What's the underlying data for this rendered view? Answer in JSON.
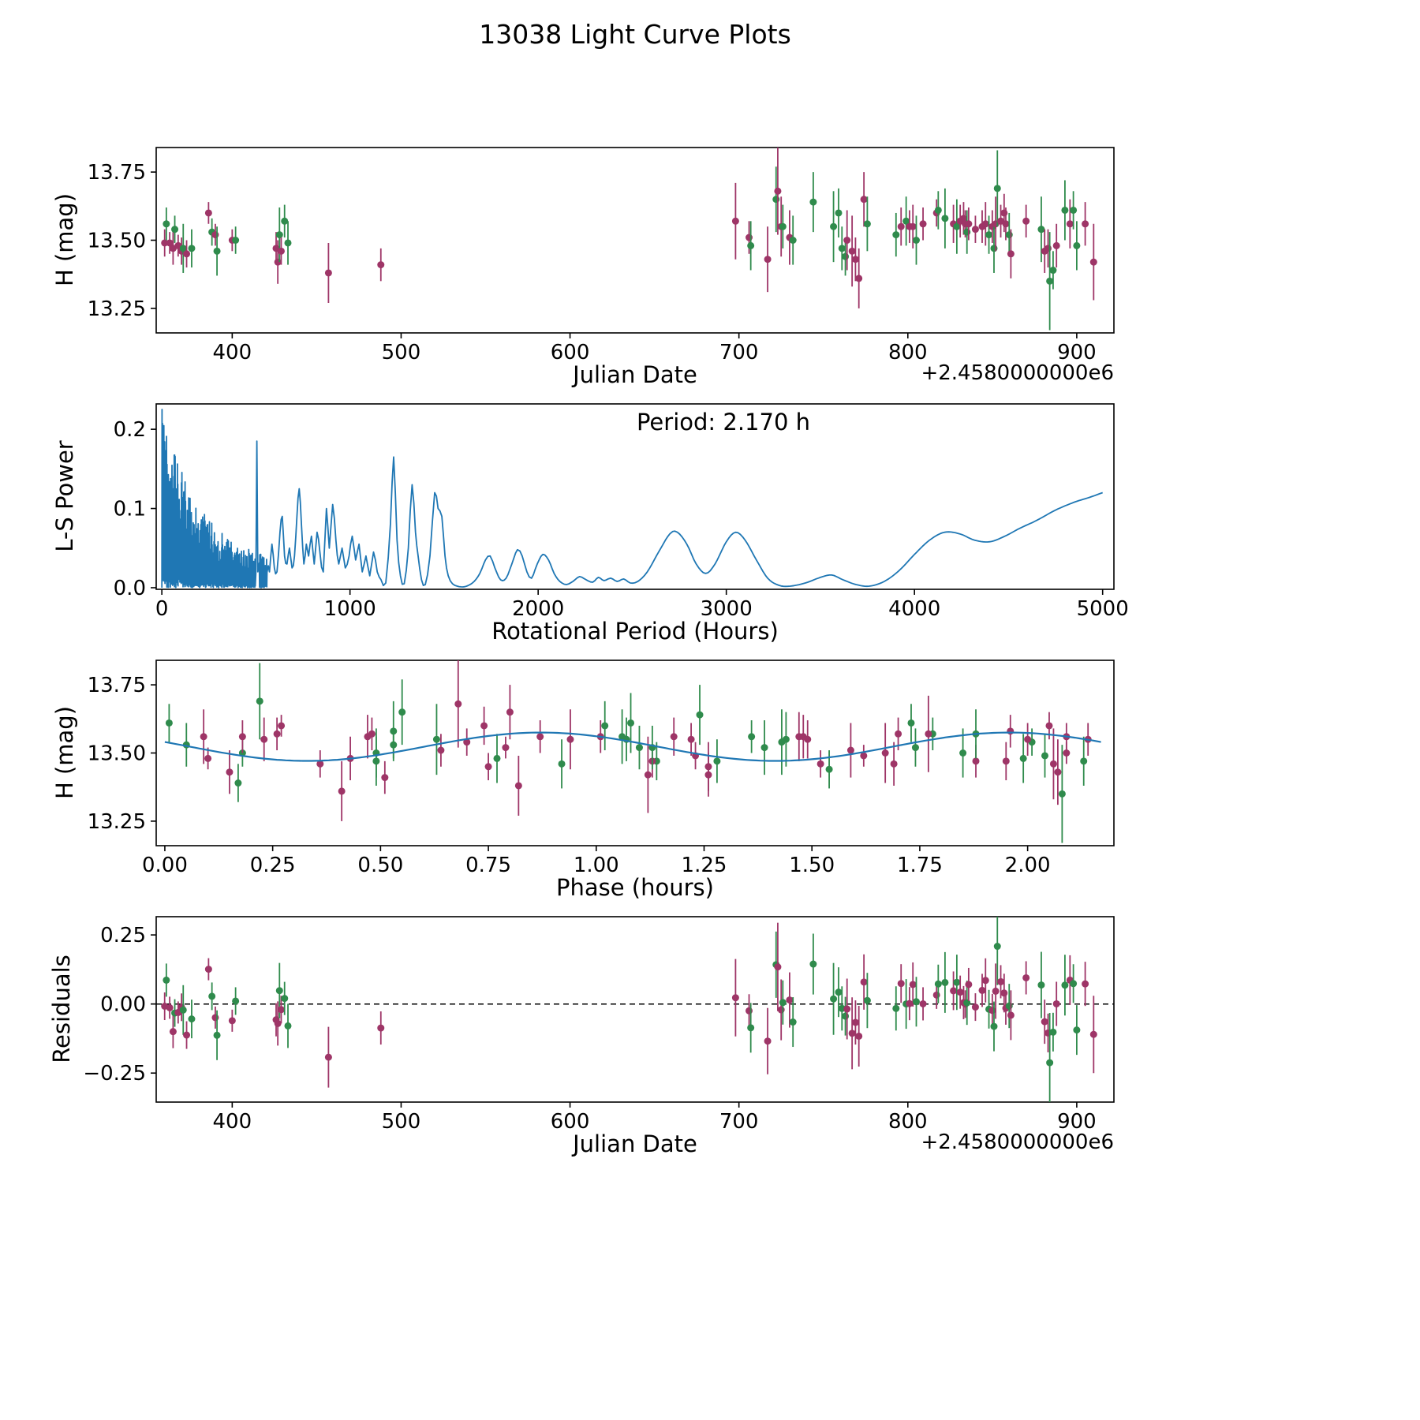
{
  "title": "13038 Light Curve Plots",
  "colors": {
    "green": "#2f8b4c",
    "purple": "#9e3567",
    "line": "#1f77b4",
    "axis": "#000000"
  },
  "chart_data": [
    {
      "type": "scatter",
      "name": "light-curve-vs-julian-date",
      "xlabel": "Julian Date",
      "ylabel": "H (mag)",
      "x_offset": "+2.4580000000e6",
      "xlim": [
        355,
        922
      ],
      "ylim": [
        13.16,
        13.84
      ],
      "xticks": [
        400,
        500,
        600,
        700,
        800,
        900
      ],
      "xticklabels": [
        "400",
        "500",
        "600",
        "700",
        "800",
        "900"
      ],
      "yticks": [
        13.25,
        13.5,
        13.75
      ],
      "yticklabels": [
        "13.25",
        "13.50",
        "13.75"
      ],
      "grid": false,
      "legend": "none",
      "points_format": "[julian_date_minus_2458000, H_mag, err_mag, series]",
      "series_colors": {
        "g": "#2f8b4c",
        "p": "#9e3567"
      },
      "points": [
        [
          360,
          13.49,
          0.05,
          "p"
        ],
        [
          361,
          13.56,
          0.06,
          "g"
        ],
        [
          363,
          13.49,
          0.04,
          "p"
        ],
        [
          365,
          13.47,
          0.06,
          "p"
        ],
        [
          366,
          13.54,
          0.05,
          "g"
        ],
        [
          368,
          13.48,
          0.04,
          "p"
        ],
        [
          370,
          13.46,
          0.05,
          "p"
        ],
        [
          371,
          13.47,
          0.09,
          "g"
        ],
        [
          373,
          13.45,
          0.05,
          "p"
        ],
        [
          376,
          13.47,
          0.07,
          "g"
        ],
        [
          386,
          13.6,
          0.04,
          "p"
        ],
        [
          388,
          13.53,
          0.05,
          "g"
        ],
        [
          390,
          13.52,
          0.04,
          "p"
        ],
        [
          391,
          13.46,
          0.09,
          "g"
        ],
        [
          400,
          13.5,
          0.04,
          "p"
        ],
        [
          402,
          13.5,
          0.05,
          "g"
        ],
        [
          426,
          13.47,
          0.06,
          "p"
        ],
        [
          427,
          13.42,
          0.08,
          "p"
        ],
        [
          428,
          13.52,
          0.1,
          "g"
        ],
        [
          429,
          13.46,
          0.05,
          "p"
        ],
        [
          431,
          13.57,
          0.06,
          "g"
        ],
        [
          433,
          13.49,
          0.08,
          "g"
        ],
        [
          457,
          13.38,
          0.11,
          "p"
        ],
        [
          488,
          13.41,
          0.06,
          "p"
        ],
        [
          698,
          13.57,
          0.14,
          "p"
        ],
        [
          706,
          13.51,
          0.06,
          "p"
        ],
        [
          707,
          13.48,
          0.09,
          "g"
        ],
        [
          717,
          13.43,
          0.12,
          "p"
        ],
        [
          722,
          13.65,
          0.12,
          "g"
        ],
        [
          723,
          13.68,
          0.16,
          "p"
        ],
        [
          725,
          13.55,
          0.11,
          "p"
        ],
        [
          726,
          13.55,
          0.08,
          "g"
        ],
        [
          730,
          13.51,
          0.1,
          "p"
        ],
        [
          732,
          13.5,
          0.09,
          "g"
        ],
        [
          744,
          13.64,
          0.11,
          "g"
        ],
        [
          756,
          13.55,
          0.13,
          "g"
        ],
        [
          759,
          13.6,
          0.09,
          "g"
        ],
        [
          761,
          13.47,
          0.08,
          "g"
        ],
        [
          763,
          13.44,
          0.07,
          "g"
        ],
        [
          764,
          13.5,
          0.11,
          "p"
        ],
        [
          767,
          13.46,
          0.13,
          "p"
        ],
        [
          769,
          13.43,
          0.08,
          "p"
        ],
        [
          771,
          13.36,
          0.11,
          "p"
        ],
        [
          774,
          13.65,
          0.1,
          "p"
        ],
        [
          776,
          13.56,
          0.1,
          "g"
        ],
        [
          793,
          13.52,
          0.08,
          "g"
        ],
        [
          796,
          13.55,
          0.07,
          "p"
        ],
        [
          799,
          13.57,
          0.09,
          "g"
        ],
        [
          801,
          13.55,
          0.06,
          "p"
        ],
        [
          803,
          13.55,
          0.08,
          "p"
        ],
        [
          805,
          13.5,
          0.09,
          "g"
        ],
        [
          809,
          13.56,
          0.06,
          "p"
        ],
        [
          817,
          13.6,
          0.05,
          "p"
        ],
        [
          818,
          13.61,
          0.07,
          "g"
        ],
        [
          822,
          13.58,
          0.11,
          "g"
        ],
        [
          827,
          13.56,
          0.07,
          "p"
        ],
        [
          829,
          13.55,
          0.1,
          "g"
        ],
        [
          831,
          13.57,
          0.06,
          "p"
        ],
        [
          833,
          13.58,
          0.06,
          "p"
        ],
        [
          834,
          13.56,
          0.05,
          "p"
        ],
        [
          835,
          13.53,
          0.08,
          "g"
        ],
        [
          836,
          13.56,
          0.06,
          "p"
        ],
        [
          840,
          13.54,
          0.05,
          "p"
        ],
        [
          844,
          13.55,
          0.06,
          "p"
        ],
        [
          846,
          13.56,
          0.08,
          "p"
        ],
        [
          848,
          13.52,
          0.07,
          "g"
        ],
        [
          850,
          13.55,
          0.06,
          "p"
        ],
        [
          851,
          13.47,
          0.09,
          "g"
        ],
        [
          852,
          13.56,
          0.1,
          "p"
        ],
        [
          853,
          13.69,
          0.14,
          "g"
        ],
        [
          855,
          13.57,
          0.06,
          "p"
        ],
        [
          857,
          13.6,
          0.07,
          "p"
        ],
        [
          858,
          13.56,
          0.06,
          "p"
        ],
        [
          860,
          13.52,
          0.08,
          "g"
        ],
        [
          861,
          13.45,
          0.09,
          "p"
        ],
        [
          870,
          13.57,
          0.06,
          "p"
        ],
        [
          879,
          13.54,
          0.12,
          "g"
        ],
        [
          881,
          13.46,
          0.08,
          "p"
        ],
        [
          883,
          13.47,
          0.07,
          "p"
        ],
        [
          884,
          13.35,
          0.18,
          "g"
        ],
        [
          886,
          13.39,
          0.07,
          "g"
        ],
        [
          888,
          13.48,
          0.08,
          "p"
        ],
        [
          893,
          13.61,
          0.11,
          "g"
        ],
        [
          896,
          13.56,
          0.09,
          "p"
        ],
        [
          898,
          13.61,
          0.07,
          "g"
        ],
        [
          900,
          13.48,
          0.09,
          "g"
        ],
        [
          905,
          13.56,
          0.08,
          "p"
        ],
        [
          910,
          13.42,
          0.14,
          "p"
        ]
      ]
    },
    {
      "type": "line",
      "name": "lomb-scargle-periodogram",
      "xlabel": "Rotational Period (Hours)",
      "ylabel": "L-S Power",
      "annotation": "Period: 2.170 h",
      "xlim": [
        -30,
        5060
      ],
      "ylim": [
        -0.002,
        0.232
      ],
      "xticks": [
        0,
        1000,
        2000,
        3000,
        4000,
        5000
      ],
      "xticklabels": [
        "0",
        "1000",
        "2000",
        "3000",
        "4000",
        "5000"
      ],
      "yticks": [
        0,
        0.1,
        0.2
      ],
      "yticklabels": [
        "0.0",
        "0.1",
        "0.2"
      ],
      "grid": false,
      "line_color": "#1f77b4",
      "noise": {
        "x_start": 1,
        "x_end": 560,
        "step": 1.2,
        "seed": 42,
        "gap": [
          497,
          517
        ],
        "envelope": [
          [
            0,
            0.232
          ],
          [
            30,
            0.21
          ],
          [
            60,
            0.18
          ],
          [
            100,
            0.15
          ],
          [
            150,
            0.12
          ],
          [
            200,
            0.1
          ],
          [
            260,
            0.085
          ],
          [
            320,
            0.07
          ],
          [
            380,
            0.055
          ],
          [
            440,
            0.05
          ],
          [
            500,
            0.046
          ],
          [
            560,
            0.04
          ]
        ]
      },
      "spike": [
        [
          500,
          0.02
        ],
        [
          505,
          0.185
        ],
        [
          510,
          0.02
        ]
      ],
      "anchors": [
        [
          560,
          0.04
        ],
        [
          572,
          0.02
        ],
        [
          585,
          0.055
        ],
        [
          598,
          0.025
        ],
        [
          612,
          0.02
        ],
        [
          628,
          0.07
        ],
        [
          640,
          0.09
        ],
        [
          652,
          0.04
        ],
        [
          665,
          0.03
        ],
        [
          678,
          0.05
        ],
        [
          692,
          0.025
        ],
        [
          705,
          0.04
        ],
        [
          718,
          0.09
        ],
        [
          730,
          0.125
        ],
        [
          742,
          0.08
        ],
        [
          755,
          0.03
        ],
        [
          768,
          0.055
        ],
        [
          780,
          0.04
        ],
        [
          795,
          0.065
        ],
        [
          810,
          0.03
        ],
        [
          825,
          0.07
        ],
        [
          840,
          0.045
        ],
        [
          858,
          0.02
        ],
        [
          875,
          0.1
        ],
        [
          890,
          0.05
        ],
        [
          908,
          0.105
        ],
        [
          925,
          0.06
        ],
        [
          940,
          0.03
        ],
        [
          958,
          0.05
        ],
        [
          975,
          0.025
        ],
        [
          995,
          0.04
        ],
        [
          1012,
          0.065
        ],
        [
          1030,
          0.035
        ],
        [
          1048,
          0.055
        ],
        [
          1065,
          0.02
        ],
        [
          1085,
          0.04
        ],
        [
          1105,
          0.015
        ],
        [
          1125,
          0.045
        ],
        [
          1145,
          0.02
        ],
        [
          1165,
          0.01
        ],
        [
          1190,
          0.006
        ],
        [
          1215,
          0.08
        ],
        [
          1232,
          0.165
        ],
        [
          1250,
          0.06
        ],
        [
          1268,
          0.015
        ],
        [
          1288,
          0.005
        ],
        [
          1310,
          0.05
        ],
        [
          1330,
          0.13
        ],
        [
          1348,
          0.07
        ],
        [
          1362,
          0.04
        ],
        [
          1380,
          0.01
        ],
        [
          1400,
          0.004
        ],
        [
          1425,
          0.04
        ],
        [
          1450,
          0.12
        ],
        [
          1468,
          0.1
        ],
        [
          1488,
          0.09
        ],
        [
          1505,
          0.04
        ],
        [
          1522,
          0.015
        ],
        [
          1545,
          0.005
        ],
        [
          1570,
          0.002
        ],
        [
          1600,
          0.001
        ],
        [
          1630,
          0.003
        ],
        [
          1660,
          0.008
        ],
        [
          1690,
          0.018
        ],
        [
          1720,
          0.035
        ],
        [
          1745,
          0.04
        ],
        [
          1770,
          0.025
        ],
        [
          1800,
          0.01
        ],
        [
          1830,
          0.012
        ],
        [
          1860,
          0.03
        ],
        [
          1890,
          0.048
        ],
        [
          1915,
          0.04
        ],
        [
          1940,
          0.02
        ],
        [
          1965,
          0.012
        ],
        [
          1995,
          0.03
        ],
        [
          2025,
          0.042
        ],
        [
          2055,
          0.035
        ],
        [
          2085,
          0.018
        ],
        [
          2115,
          0.008
        ],
        [
          2150,
          0.004
        ],
        [
          2185,
          0.008
        ],
        [
          2220,
          0.014
        ],
        [
          2255,
          0.01
        ],
        [
          2290,
          0.007
        ],
        [
          2320,
          0.013
        ],
        [
          2350,
          0.009
        ],
        [
          2385,
          0.012
        ],
        [
          2420,
          0.008
        ],
        [
          2455,
          0.011
        ],
        [
          2490,
          0.006
        ],
        [
          2530,
          0.008
        ],
        [
          2580,
          0.02
        ],
        [
          2640,
          0.045
        ],
        [
          2700,
          0.068
        ],
        [
          2740,
          0.07
        ],
        [
          2790,
          0.055
        ],
        [
          2840,
          0.03
        ],
        [
          2890,
          0.018
        ],
        [
          2940,
          0.03
        ],
        [
          3000,
          0.058
        ],
        [
          3050,
          0.07
        ],
        [
          3100,
          0.06
        ],
        [
          3160,
          0.035
        ],
        [
          3220,
          0.012
        ],
        [
          3280,
          0.003
        ],
        [
          3340,
          0.002
        ],
        [
          3420,
          0.006
        ],
        [
          3500,
          0.013
        ],
        [
          3560,
          0.016
        ],
        [
          3620,
          0.01
        ],
        [
          3690,
          0.004
        ],
        [
          3760,
          0.002
        ],
        [
          3840,
          0.008
        ],
        [
          3920,
          0.022
        ],
        [
          4000,
          0.042
        ],
        [
          4080,
          0.06
        ],
        [
          4160,
          0.07
        ],
        [
          4240,
          0.068
        ],
        [
          4320,
          0.06
        ],
        [
          4400,
          0.058
        ],
        [
          4480,
          0.065
        ],
        [
          4560,
          0.075
        ],
        [
          4650,
          0.085
        ],
        [
          4750,
          0.098
        ],
        [
          4850,
          0.108
        ],
        [
          4930,
          0.114
        ],
        [
          5000,
          0.12
        ]
      ]
    },
    {
      "type": "scatter",
      "name": "phased-light-curve-with-fit",
      "xlabel": "Phase (hours)",
      "ylabel": "H (mag)",
      "xlim": [
        -0.02,
        2.2
      ],
      "ylim": [
        13.16,
        13.84
      ],
      "xticks": [
        0,
        0.25,
        0.5,
        0.75,
        1,
        1.25,
        1.5,
        1.75,
        2
      ],
      "xticklabels": [
        "0.00",
        "0.25",
        "0.50",
        "0.75",
        "1.00",
        "1.25",
        "1.50",
        "1.75",
        "2.00"
      ],
      "yticks": [
        13.25,
        13.5,
        13.75
      ],
      "yticklabels": [
        "13.25",
        "13.50",
        "13.75"
      ],
      "grid": false,
      "fold_period_hours": 2.17,
      "fit": {
        "mean": 13.523,
        "amplitude": 0.052,
        "period_hours": 1.085,
        "phase_of_minimum": 0.33
      },
      "fit_color": "#1f77b4",
      "points_source": "points of chart 0 folded modulo fold_period_hours"
    },
    {
      "type": "scatter",
      "name": "residuals-vs-julian-date",
      "xlabel": "Julian Date",
      "ylabel": "Residuals",
      "x_offset": "+2.4580000000e6",
      "xlim": [
        355,
        922
      ],
      "ylim": [
        -0.355,
        0.316
      ],
      "xticks": [
        400,
        500,
        600,
        700,
        800,
        900
      ],
      "xticklabels": [
        "400",
        "500",
        "600",
        "700",
        "800",
        "900"
      ],
      "yticks": [
        -0.25,
        0,
        0.25
      ],
      "yticklabels": [
        "−0.25",
        "0.00",
        "0.25"
      ],
      "grid": false,
      "zero_line": {
        "value": 0,
        "style": "dashed",
        "color": "#000000"
      },
      "points_source": "H mag of chart 0 minus sinusoid fit evaluated at folded phase"
    }
  ]
}
